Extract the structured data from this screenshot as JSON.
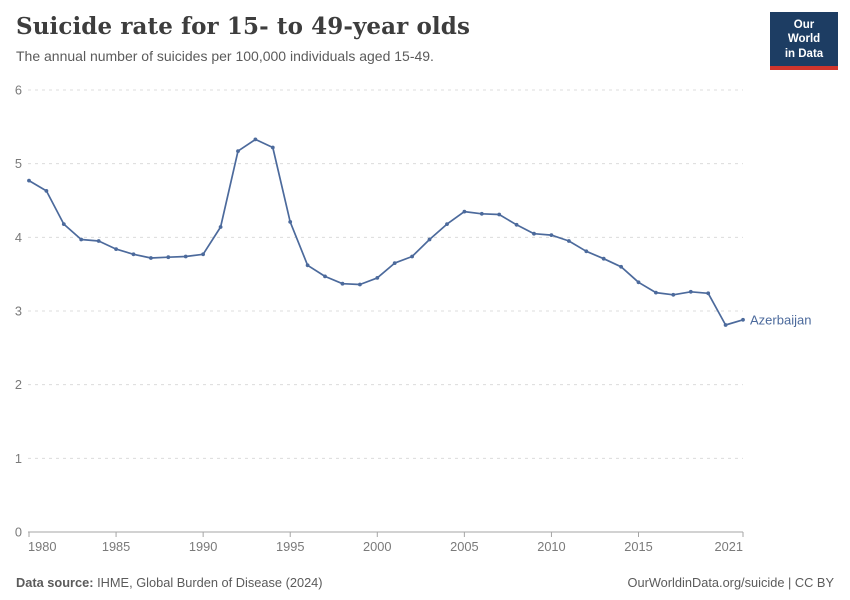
{
  "header": {
    "title": "Suicide rate for 15- to 49-year olds",
    "subtitle": "The annual number of suicides per 100,000 individuals aged 15-49.",
    "logo": {
      "line1": "Our World",
      "line2": "in Data"
    }
  },
  "chart_data": {
    "type": "line",
    "title": "Suicide rate for 15- to 49-year olds",
    "xlabel": "",
    "ylabel": "",
    "x": [
      1980,
      1981,
      1982,
      1983,
      1984,
      1985,
      1986,
      1987,
      1988,
      1989,
      1990,
      1991,
      1992,
      1993,
      1994,
      1995,
      1996,
      1997,
      1998,
      1999,
      2000,
      2001,
      2002,
      2003,
      2004,
      2005,
      2006,
      2007,
      2008,
      2009,
      2010,
      2011,
      2012,
      2013,
      2014,
      2015,
      2016,
      2017,
      2018,
      2019,
      2020,
      2021
    ],
    "series": [
      {
        "name": "Azerbaijan",
        "values": [
          4.77,
          4.63,
          4.18,
          3.97,
          3.95,
          3.84,
          3.77,
          3.72,
          3.73,
          3.74,
          3.77,
          4.14,
          5.17,
          5.33,
          5.22,
          4.21,
          3.62,
          3.47,
          3.37,
          3.36,
          3.45,
          3.65,
          3.74,
          3.97,
          4.18,
          4.35,
          4.32,
          4.31,
          4.17,
          4.05,
          4.03,
          3.95,
          3.81,
          3.71,
          3.6,
          3.39,
          3.25,
          3.22,
          3.26,
          3.24,
          2.81,
          2.88
        ]
      }
    ],
    "xlim": [
      1980,
      2021
    ],
    "ylim": [
      0,
      6
    ],
    "yticks": [
      0,
      1,
      2,
      3,
      4,
      5,
      6
    ],
    "xticks": [
      1980,
      1985,
      1990,
      1995,
      2000,
      2005,
      2010,
      2015,
      2021
    ],
    "grid": "horizontal-dashed",
    "legend_position": "end-of-line-label",
    "end_label": "Azerbaijan"
  },
  "footer": {
    "source_label": "Data source:",
    "source_text": " IHME, Global Burden of Disease (2024)",
    "right_text": "OurWorldinData.org/suicide | CC BY"
  },
  "colors": {
    "series_line": "#4C6A9C",
    "end_label": "#4C6A9C",
    "grid_line": "#dcdcdc",
    "axis_line": "#a5a5a5",
    "tick_label": "#7a7a7a",
    "logo_navy": "#1d3d63",
    "logo_red": "#d0352c"
  }
}
